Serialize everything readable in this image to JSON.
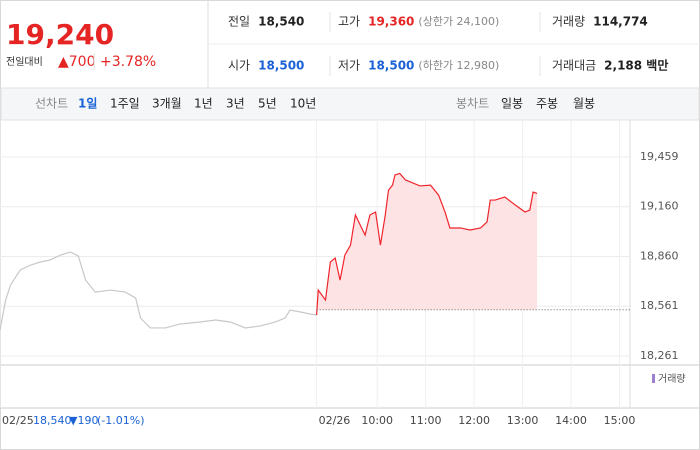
{
  "header": {
    "price": "19,240",
    "change_label": "전일대비",
    "change": "▲700",
    "change_pct": "+3.78%",
    "stats": [
      {
        "label": "전일",
        "value": "18,540"
      },
      {
        "label": "고가",
        "value": "19,360",
        "note": "(상한가 24,100)"
      },
      {
        "label": "거래량",
        "value": "114,774"
      },
      {
        "label": "시가",
        "value": "18,500"
      },
      {
        "label": "저가",
        "value": "18,500",
        "note": "(하한가 12,980)"
      },
      {
        "label": "거래대금",
        "value": "2,188 백만"
      }
    ]
  },
  "tabs": {
    "left_label": "선차트",
    "left": [
      "1일",
      "1주일",
      "3개월",
      "1년",
      "3년",
      "5년",
      "10년"
    ],
    "right_label": "봉차트",
    "right": [
      "일봉",
      "주봉",
      "월봉"
    ]
  },
  "prev_day": {
    "close": "18,540",
    "change": "▼190",
    "pct": "(-1.01%)"
  },
  "chart_data": {
    "type": "line",
    "x": [
      -407,
      -400,
      -394,
      -382,
      -369,
      -357,
      -345,
      -332,
      -320,
      -310,
      -301,
      -289,
      -270,
      -252,
      -239,
      -233,
      -221,
      -202,
      -184,
      -159,
      -140,
      -122,
      -103,
      -85,
      -66,
      -54,
      -48,
      -35,
      -23,
      -15,
      -13,
      -4,
      2,
      8,
      14,
      20,
      27,
      33,
      39,
      45,
      51,
      58,
      64,
      70,
      74,
      79,
      82,
      88,
      95,
      101,
      113,
      126,
      136,
      144,
      150,
      163,
      175,
      188,
      196,
      200,
      206,
      218,
      231,
      243,
      249,
      253,
      258
    ],
    "series": [
      {
        "color": "#c8c8c8",
        "values": [
          18418,
          18598,
          18688,
          18779,
          18809,
          18827,
          18839,
          18869,
          18887,
          18863,
          18718,
          18646,
          18658,
          18646,
          18610,
          18490,
          18430,
          18430,
          18454,
          18466,
          18478,
          18466,
          18430,
          18442,
          18466,
          18490,
          18538,
          18526,
          18514,
          18508,
          null,
          null,
          null,
          null,
          null,
          null,
          null,
          null,
          null,
          null,
          null,
          null,
          null,
          null,
          null,
          null,
          null,
          null,
          null,
          null,
          null,
          null,
          null,
          null,
          null,
          null,
          null,
          null,
          null,
          null,
          null,
          null,
          null,
          null,
          null,
          null,
          null
        ]
      },
      {
        "color": "#f0242c",
        "values": [
          null,
          null,
          null,
          null,
          null,
          null,
          null,
          null,
          null,
          null,
          null,
          null,
          null,
          null,
          null,
          null,
          null,
          null,
          null,
          null,
          null,
          null,
          null,
          null,
          null,
          null,
          null,
          null,
          null,
          18508,
          18658,
          18598,
          18827,
          18851,
          18718,
          18869,
          18929,
          19110,
          19050,
          18989,
          19110,
          19128,
          18929,
          19110,
          19260,
          19290,
          19351,
          19360,
          19321,
          19309,
          19285,
          19290,
          19230,
          19128,
          19032,
          19032,
          19020,
          19032,
          19068,
          19200,
          19200,
          19218,
          19170,
          19128,
          19140,
          19248,
          19240
        ]
      }
    ],
    "reference": 18540,
    "xlim": [
      -407,
      373
    ],
    "xticks": [
      {
        "value": -407,
        "label": "02/25"
      },
      {
        "value": -15,
        "label": "02/26"
      },
      {
        "value": 60,
        "label": "10:00"
      },
      {
        "value": 120,
        "label": "11:00"
      },
      {
        "value": 180,
        "label": "12:00"
      },
      {
        "value": 240,
        "label": "13:00"
      },
      {
        "value": 300,
        "label": "14:00"
      },
      {
        "value": 360,
        "label": "15:00"
      }
    ],
    "ylim": [
      18207,
      19682
    ],
    "yticks": [
      {
        "value": 18261,
        "label": "18,261"
      },
      {
        "value": 18561,
        "label": "18,561"
      },
      {
        "value": 18860,
        "label": "18,860"
      },
      {
        "value": 19160,
        "label": "19,160"
      },
      {
        "value": 19459,
        "label": "19,459"
      }
    ],
    "volume_legend": "거래량",
    "grid": true
  }
}
